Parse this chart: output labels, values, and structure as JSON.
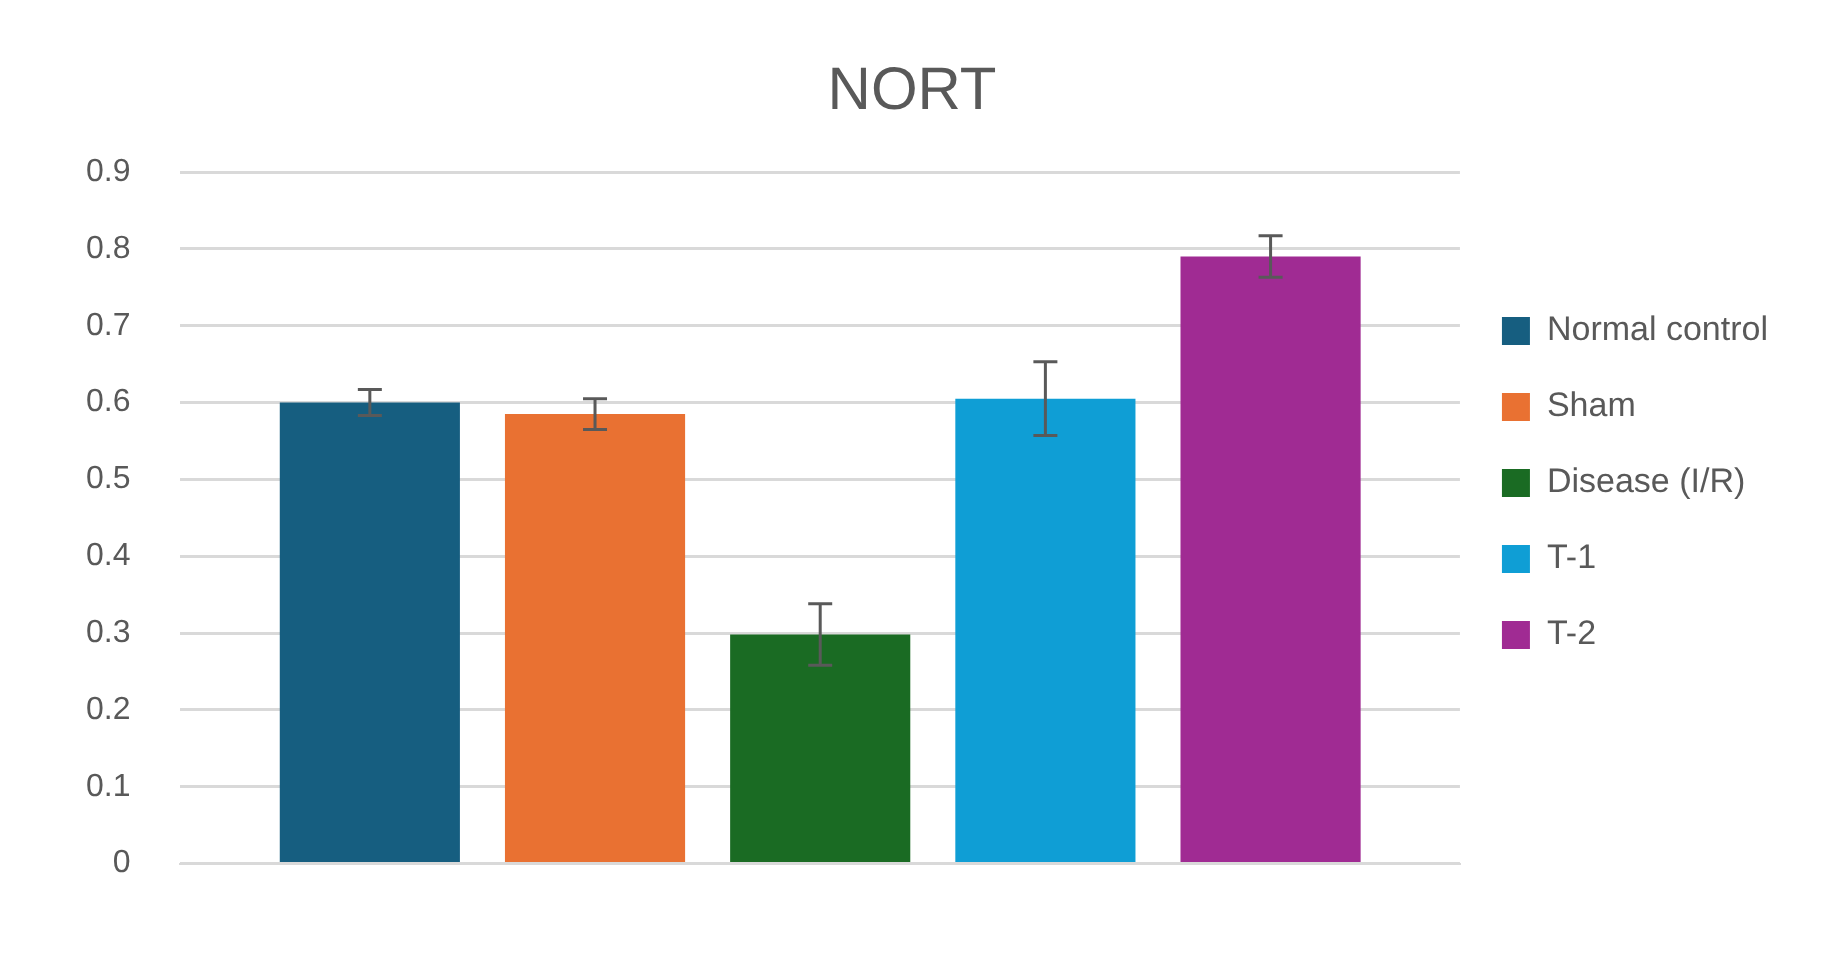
{
  "chart_data": {
    "type": "bar",
    "title": "NORT",
    "categories": [
      null
    ],
    "series": [
      {
        "name": "Normal control",
        "color": "#165e80",
        "values": [
          0.6
        ],
        "errors": [
          0.017
        ]
      },
      {
        "name": "Sham",
        "color": "#e97132",
        "values": [
          0.585
        ],
        "errors": [
          0.02
        ]
      },
      {
        "name": "Disease (I/R)",
        "color": "#1a6b23",
        "values": [
          0.298
        ],
        "errors": [
          0.04
        ]
      },
      {
        "name": "T-1",
        "color": "#0f9ed5",
        "values": [
          0.605
        ],
        "errors": [
          0.048
        ]
      },
      {
        "name": "T-2",
        "color": "#a02b93",
        "values": [
          0.79
        ],
        "errors": [
          0.027
        ]
      }
    ],
    "ylim": [
      0,
      0.9
    ],
    "yticks": [
      0,
      0.1,
      0.2,
      0.3,
      0.4,
      0.5,
      0.6,
      0.7,
      0.8,
      0.9
    ],
    "grid": "y",
    "legend": "right"
  }
}
